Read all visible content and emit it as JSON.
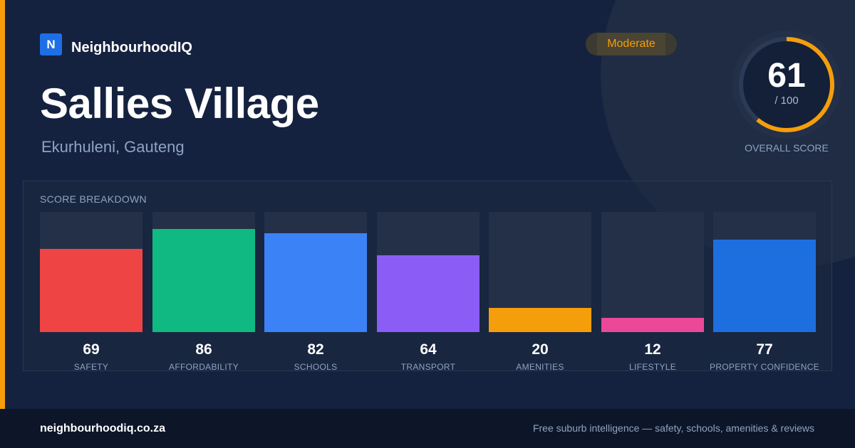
{
  "brand": {
    "logo_letter": "N",
    "name": "NeighbourhoodIQ"
  },
  "suburb": {
    "name": "Sallies Village",
    "location": "Ekurhuleni, Gauteng"
  },
  "rating_badge": {
    "label": "Moderate",
    "color": "#f59e0b"
  },
  "overall_score": {
    "value": 61,
    "max_label": "/ 100",
    "caption": "OVERALL SCORE",
    "ring_color": "#f59e0b"
  },
  "breakdown": {
    "title": "SCORE BREAKDOWN",
    "max": 100,
    "items": [
      {
        "label": "SAFETY",
        "value": 69,
        "color": "#ef4444"
      },
      {
        "label": "AFFORDABILITY",
        "value": 86,
        "color": "#10b981"
      },
      {
        "label": "SCHOOLS",
        "value": 82,
        "color": "#3b82f6"
      },
      {
        "label": "TRANSPORT",
        "value": 64,
        "color": "#8b5cf6"
      },
      {
        "label": "AMENITIES",
        "value": 20,
        "color": "#f59e0b"
      },
      {
        "label": "LIFESTYLE",
        "value": 12,
        "color": "#ec4899"
      },
      {
        "label": "PROPERTY CONFIDENCE",
        "value": 77,
        "color": "#1d6fe0"
      }
    ]
  },
  "footer": {
    "url": "neighbourhoodiq.co.za",
    "tagline": "Free suburb intelligence — safety, schools, amenities & reviews"
  }
}
